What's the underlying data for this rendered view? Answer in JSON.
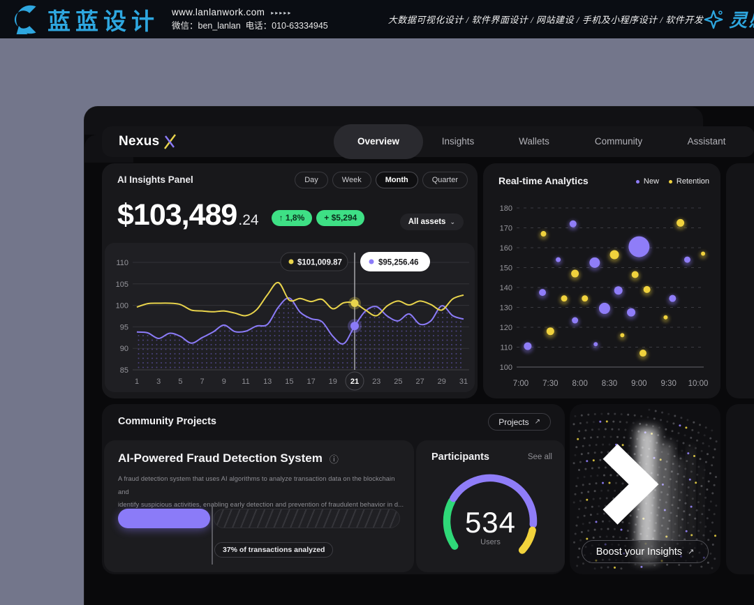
{
  "banner": {
    "brand_color": "#2ea7e0",
    "logo_text": "蓝蓝设计",
    "website": "www.lanlanwork.com",
    "website_arrows": "▸▸▸▸▸",
    "wechat": "微信：ben_lanlan",
    "phone": "电话：010-63334945",
    "services": "大数据可视化设计 / 软件界面设计 / 网站建设 / 手机及小程序设计 / 软件开发",
    "collect": "灵感收集"
  },
  "nav": {
    "brand": "Nexus",
    "tabs": [
      {
        "label": "Overview",
        "active": true
      },
      {
        "label": "Insights",
        "active": false
      },
      {
        "label": "Wallets",
        "active": false
      },
      {
        "label": "Community",
        "active": false
      },
      {
        "label": "Assistant",
        "active": false
      }
    ]
  },
  "insights": {
    "title": "AI Insights Panel",
    "ranges": [
      {
        "label": "Day",
        "active": false
      },
      {
        "label": "Week",
        "active": false
      },
      {
        "label": "Month",
        "active": true
      },
      {
        "label": "Quarter",
        "active": false
      }
    ],
    "balance": "$103,489",
    "balance_decimals": ".24",
    "change_pct": "↑ 1,8%",
    "change_abs": "+ $5,294",
    "asset_filter": "All assets",
    "asset_filter_chevron": "⌄",
    "accent_green": "#3ee085"
  },
  "analytics": {
    "title": "Real-time Analytics",
    "legend": [
      {
        "label": "New",
        "color": "#8f7df8"
      },
      {
        "label": "Retention",
        "color": "#f0d23d"
      }
    ]
  },
  "community": {
    "title": "Community Projects",
    "projects_button": "Projects",
    "projects_button_icon": "↗",
    "project": {
      "title": "AI-Powered Fraud Detection System",
      "info_icon": "ⓘ",
      "description_line1": "A fraud detection system that uses AI algorithms to analyze transaction data on the blockchain and",
      "description_line2": "identify suspicious activities, enabling early detection and prevention of fraudulent behavior in d...",
      "progress_percent": 37,
      "progress_label": "37% of transactions analyzed",
      "progress_color": "#8b7bf8"
    },
    "participants": {
      "title": "Participants",
      "see_all": "See all",
      "count": "534",
      "unit": "Users"
    }
  },
  "boost": {
    "label": "Boost your Insights",
    "icon": "↗"
  },
  "chart_data": [
    {
      "id": "portfolio-line",
      "type": "line",
      "title": "AI Insights Panel – asset value, Month view",
      "x_ticks": [
        1,
        3,
        5,
        7,
        9,
        11,
        13,
        15,
        17,
        19,
        21,
        23,
        25,
        27,
        29,
        31
      ],
      "y_ticks": [
        110,
        105,
        100,
        95,
        90,
        85
      ],
      "ylim": [
        85,
        110
      ],
      "highlight_x": 21,
      "grid": true,
      "series": [
        {
          "name": "asset-primary",
          "color": "#e9d44c",
          "values": [
            99.6,
            100.4,
            100.5,
            100.5,
            100.2,
            98.9,
            98.7,
            98.5,
            98.7,
            98.2,
            97.6,
            99.0,
            102.5,
            105.3,
            101.2,
            101.6,
            100.9,
            101.4,
            99.2,
            100.6,
            100.5,
            98.9,
            97.6,
            99.9,
            101.0,
            100.1,
            101.0,
            100.2,
            98.9,
            101.5,
            102.4
          ]
        },
        {
          "name": "asset-secondary",
          "color": "#8b7bf8",
          "area": "dotted",
          "values": [
            93.8,
            93.6,
            92.3,
            93.5,
            92.8,
            91.2,
            92.5,
            93.8,
            95.4,
            93.9,
            94.0,
            95.2,
            95.6,
            99.6,
            101.7,
            98.4,
            96.9,
            96.2,
            92.8,
            91.1,
            95.2,
            98.7,
            99.7,
            97.5,
            96.4,
            98.0,
            95.6,
            96.4,
            99.9,
            97.6,
            96.8
          ]
        }
      ],
      "tooltips": [
        {
          "series": "asset-primary",
          "label": "$101,009.87",
          "theme": "dark",
          "dot": "#e9d44c"
        },
        {
          "series": "asset-secondary",
          "label": "$95,256.46",
          "theme": "light",
          "dot": "#8b7bf8"
        }
      ],
      "marker_values": {
        "asset-primary": 100.5,
        "asset-secondary": 95.2
      }
    },
    {
      "id": "realtime-scatter",
      "type": "scatter",
      "title": "Real-time Analytics",
      "y_ticks": [
        180,
        170,
        160,
        150,
        140,
        130,
        120,
        110,
        100
      ],
      "x_ticks": [
        "7:00",
        "7:30",
        "8:00",
        "8:30",
        "9:00",
        "9:30",
        "10:00"
      ],
      "ylim": [
        100,
        180
      ],
      "legend_position": "top-right",
      "series": [
        {
          "name": "New",
          "color": "#8f7df8",
          "points": [
            {
              "t": "7:07",
              "m": 7,
              "y": 110.5,
              "r": 5.5
            },
            {
              "t": "7:22",
              "m": 22,
              "y": 137.5,
              "r": 5
            },
            {
              "t": "7:38",
              "m": 38,
              "y": 154,
              "r": 3.5
            },
            {
              "t": "7:53",
              "m": 53,
              "y": 172,
              "r": 5
            },
            {
              "t": "7:55",
              "m": 55,
              "y": 123.5,
              "r": 4.5
            },
            {
              "t": "8:15",
              "m": 75,
              "y": 152.5,
              "r": 7.5
            },
            {
              "t": "8:16",
              "m": 76,
              "y": 111.5,
              "r": 3
            },
            {
              "t": "8:25",
              "m": 85,
              "y": 129.5,
              "r": 8
            },
            {
              "t": "8:39",
              "m": 99,
              "y": 138.5,
              "r": 6
            },
            {
              "t": "8:52",
              "m": 112,
              "y": 127.5,
              "r": 6
            },
            {
              "t": "9:00",
              "m": 120,
              "y": 160.5,
              "r": 15
            },
            {
              "t": "9:34",
              "m": 154,
              "y": 134.5,
              "r": 5
            },
            {
              "t": "9:49",
              "m": 169,
              "y": 154,
              "r": 4.5
            }
          ]
        },
        {
          "name": "Retention",
          "color": "#f0d23d",
          "points": [
            {
              "t": "7:23",
              "m": 23,
              "y": 167,
              "r": 4
            },
            {
              "t": "7:30",
              "m": 30,
              "y": 118,
              "r": 5.5
            },
            {
              "t": "7:44",
              "m": 44,
              "y": 134.5,
              "r": 4.5
            },
            {
              "t": "7:55",
              "m": 55,
              "y": 147,
              "r": 5.5
            },
            {
              "t": "8:05",
              "m": 65,
              "y": 134.5,
              "r": 4.5
            },
            {
              "t": "8:35",
              "m": 95,
              "y": 156.5,
              "r": 6.5
            },
            {
              "t": "8:43",
              "m": 103,
              "y": 116,
              "r": 3
            },
            {
              "t": "8:56",
              "m": 116,
              "y": 146.5,
              "r": 5
            },
            {
              "t": "9:04",
              "m": 124,
              "y": 107,
              "r": 5
            },
            {
              "t": "9:08",
              "m": 128,
              "y": 139,
              "r": 5
            },
            {
              "t": "9:27",
              "m": 147,
              "y": 125,
              "r": 3
            },
            {
              "t": "9:42",
              "m": 162,
              "y": 172.5,
              "r": 5.5
            },
            {
              "t": "10:05",
              "m": 185,
              "y": 157,
              "r": 3
            }
          ]
        }
      ]
    },
    {
      "id": "participants-gauge",
      "type": "pie",
      "title": "Participants gauge",
      "value": 534,
      "unit": "Users",
      "segments": [
        {
          "color": "#2fd978",
          "from_deg": 215,
          "to_deg": 152
        },
        {
          "color": "#8f7df8",
          "from_deg": 148,
          "to_deg": -4
        },
        {
          "color": "#f2d33c",
          "from_deg": -12,
          "to_deg": -42
        }
      ]
    }
  ]
}
